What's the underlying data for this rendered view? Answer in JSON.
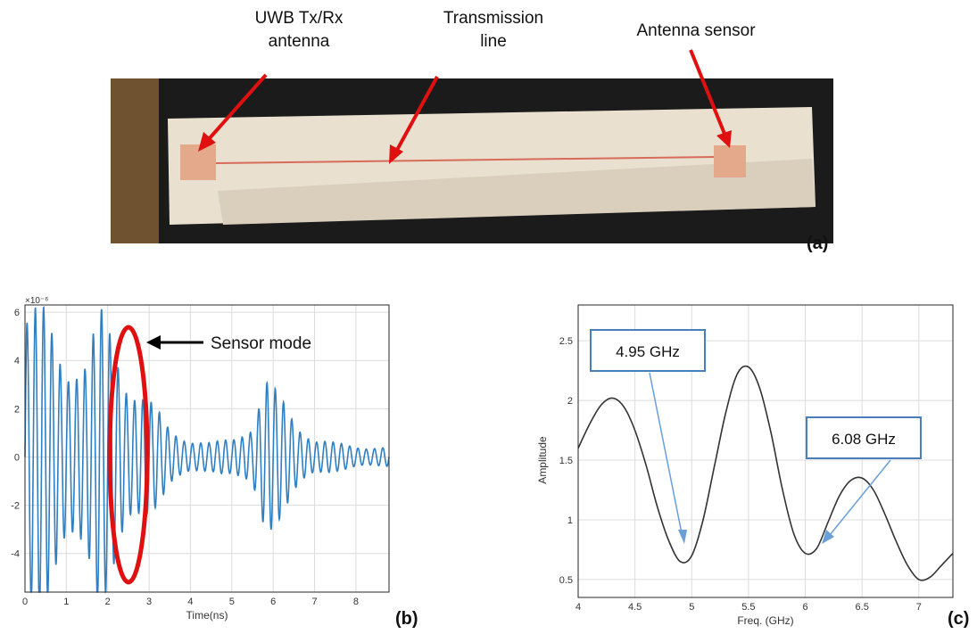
{
  "figure": {
    "panel_a": {
      "label": "(a)",
      "callouts": {
        "antenna_left_line1": "UWB Tx/Rx",
        "antenna_left_line2": "antenna",
        "transmission_line1": "Transmission",
        "transmission_line2": "line",
        "antenna_sensor": "Antenna sensor"
      }
    },
    "panel_b": {
      "label": "(b)",
      "annotation": "Sensor mode"
    },
    "panel_c": {
      "label": "(c)",
      "boxes": [
        "4.95 GHz",
        "6.08 GHz"
      ]
    }
  },
  "chart_data": [
    {
      "type": "line",
      "panel": "b",
      "xlabel": "Time(ns)",
      "ylabel": "",
      "exponent_label": "×10⁻⁶",
      "xlim": [
        0,
        8.8
      ],
      "ylim": [
        -5.6,
        6.3
      ],
      "xticks": [
        0,
        1,
        2,
        3,
        4,
        5,
        6,
        7,
        8
      ],
      "yticks": [
        -4,
        -2,
        0,
        2,
        4,
        6
      ],
      "grid": true,
      "color": "#2f7fc1",
      "series": [
        {
          "envelope": [
            [
              0,
              6.3
            ],
            [
              0.5,
              6.3
            ],
            [
              1.0,
              4.5
            ],
            [
              1.5,
              4.2
            ],
            [
              1.8,
              6.3
            ],
            [
              2.1,
              5.5
            ],
            [
              2.5,
              3.5
            ],
            [
              3.0,
              2.5
            ],
            [
              3.5,
              1.2
            ],
            [
              4.0,
              0.8
            ],
            [
              4.5,
              0.6
            ],
            [
              5.0,
              0.8
            ],
            [
              5.5,
              1.5
            ],
            [
              5.8,
              3.4
            ],
            [
              6.2,
              2.5
            ],
            [
              6.6,
              1.5
            ],
            [
              7.0,
              0.8
            ],
            [
              7.5,
              0.6
            ],
            [
              8.0,
              0.5
            ],
            [
              8.8,
              0.4
            ]
          ],
          "carrier_frequency_ghz": 5.0
        }
      ]
    },
    {
      "type": "line",
      "panel": "c",
      "xlabel": "Freq. (GHz)",
      "ylabel": "Amplitude",
      "xlim": [
        4,
        7.3
      ],
      "ylim": [
        0.35,
        2.8
      ],
      "xticks": [
        4,
        4.5,
        5,
        5.5,
        6,
        6.5,
        7
      ],
      "yticks": [
        0.5,
        1,
        1.5,
        2,
        2.5
      ],
      "grid": true,
      "color": "#333333",
      "series": [
        {
          "x": [
            4.0,
            4.1,
            4.2,
            4.3,
            4.4,
            4.5,
            4.6,
            4.7,
            4.8,
            4.9,
            5.0,
            5.1,
            5.2,
            5.3,
            5.4,
            5.5,
            5.6,
            5.7,
            5.8,
            5.9,
            6.0,
            6.1,
            6.2,
            6.3,
            6.4,
            6.5,
            6.6,
            6.7,
            6.8,
            6.9,
            7.0,
            7.1,
            7.2,
            7.3
          ],
          "y": [
            1.6,
            1.8,
            1.96,
            2.02,
            1.95,
            1.75,
            1.45,
            1.1,
            0.82,
            0.65,
            0.7,
            1.0,
            1.45,
            1.9,
            2.22,
            2.28,
            2.1,
            1.72,
            1.25,
            0.88,
            0.72,
            0.76,
            0.98,
            1.2,
            1.33,
            1.35,
            1.25,
            1.05,
            0.82,
            0.62,
            0.5,
            0.52,
            0.62,
            0.72
          ]
        }
      ]
    }
  ]
}
